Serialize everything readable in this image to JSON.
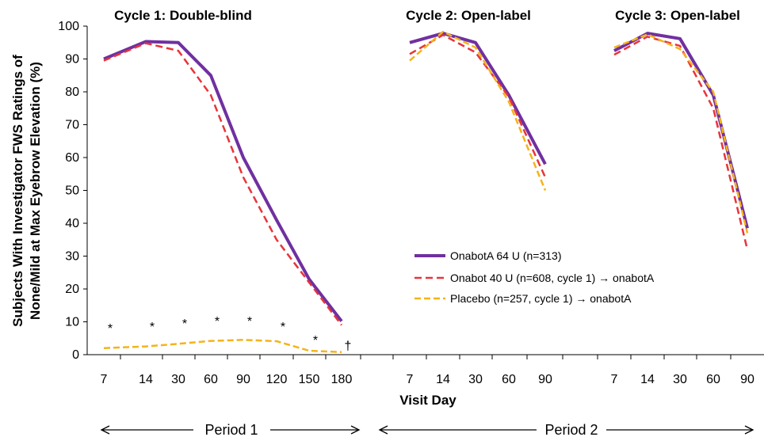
{
  "chart_data": {
    "type": "line",
    "ylabel_line1": "Subjects With Investigator FWS Ratings of",
    "ylabel_line2": "None/Mild at Max Eyebrow Elevation (%)",
    "xlabel": "Visit Day",
    "ylim": [
      0,
      100
    ],
    "yticks": [
      0,
      10,
      20,
      30,
      40,
      50,
      60,
      70,
      80,
      90,
      100
    ],
    "grid": false,
    "legend_position": "right-middle",
    "panels": [
      {
        "title": "Cycle 1: Double-blind",
        "categories": [
          "7",
          "14",
          "30",
          "60",
          "90",
          "120",
          "150",
          "180"
        ],
        "series": [
          {
            "name": "OnabotA 64 U (n=313)",
            "values": [
              90,
              95.3,
              95,
              85,
              60,
              41,
              23,
              10.2
            ]
          },
          {
            "name": "Onabot 40 U (n=608, cycle 1) → onabotA",
            "values": [
              89.5,
              94.8,
              92.5,
              79,
              54,
              35,
              22,
              9
            ]
          },
          {
            "name": "Placebo (n=257, cycle 1) → onabotA",
            "values": [
              2,
              2.5,
              3.3,
              4.2,
              4.5,
              4.1,
              1.2,
              0.8
            ]
          }
        ],
        "annotations": [
          "*",
          "*",
          "*",
          "*",
          "*",
          "*",
          "*",
          "†"
        ]
      },
      {
        "title": "Cycle 2: Open-label",
        "categories": [
          "7",
          "14",
          "30",
          "60",
          "90"
        ],
        "series": [
          {
            "name": "OnabotA 64 U (n=313)",
            "values": [
              95,
              97.8,
              95,
              79,
              58
            ]
          },
          {
            "name": "Onabot 40 U (n=608, cycle 1) → onabotA",
            "values": [
              91.5,
              97.3,
              92,
              78.5,
              54
            ]
          },
          {
            "name": "Placebo (n=257, cycle 1) → onabotA",
            "values": [
              89.5,
              98.3,
              93.5,
              77,
              50
            ]
          }
        ]
      },
      {
        "title": "Cycle 3: Open-label",
        "categories": [
          "7",
          "14",
          "30",
          "60",
          "90"
        ],
        "series": [
          {
            "name": "OnabotA 64 U (n=313)",
            "values": [
              92.5,
              97.8,
              96.2,
              79,
              38.5
            ]
          },
          {
            "name": "Onabot 40 U (n=608, cycle 1) → onabotA",
            "values": [
              91.3,
              96.8,
              94,
              75,
              32
            ]
          },
          {
            "name": "Placebo (n=257, cycle 1) → onabotA",
            "values": [
              93.5,
              97.5,
              93,
              80,
              37
            ]
          }
        ]
      }
    ],
    "colors": {
      "OnabotA 64 U (n=313)": "#7030A0",
      "Onabot 40 U (n=608, cycle 1) → onabotA": "#E8343A",
      "Placebo (n=257, cycle 1) → onabotA": "#F5B31A"
    },
    "periods": [
      {
        "label": "Period 1"
      },
      {
        "label": "Period 2"
      }
    ]
  }
}
